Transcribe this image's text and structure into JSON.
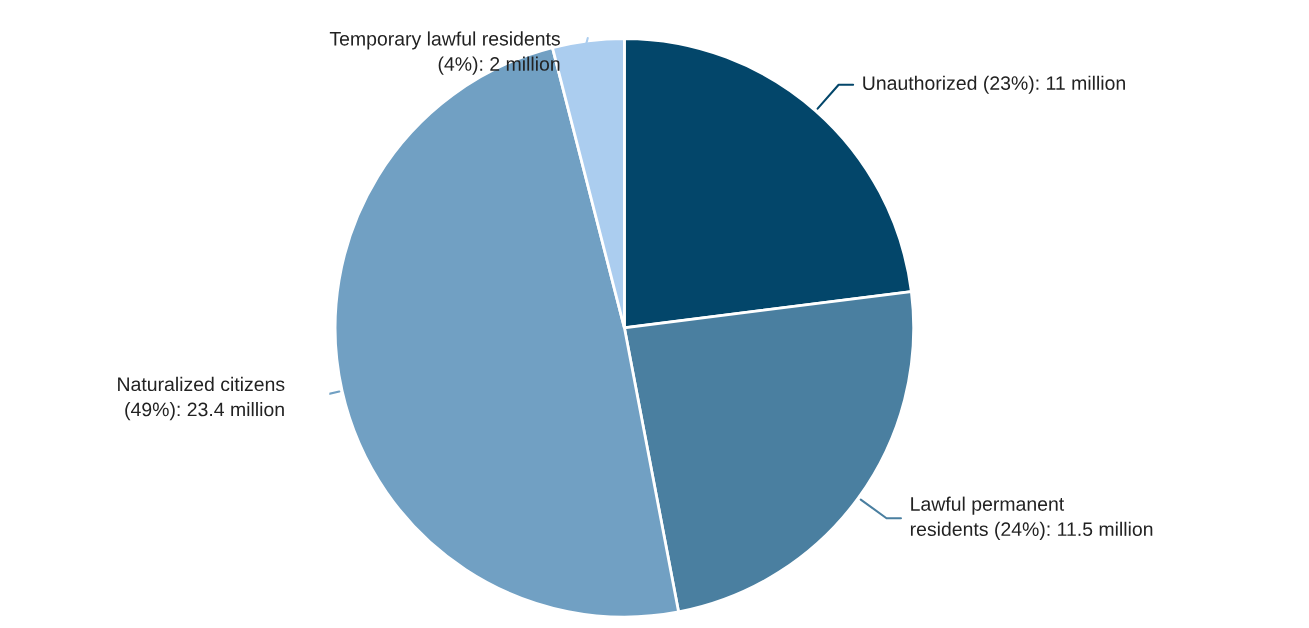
{
  "chart_data": {
    "type": "pie",
    "categories": [
      "Unauthorized (23%): 11 million",
      "Lawful permanent\nresidents (24%): 11.5 million",
      "Naturalized citizens\n(49%): 23.4 million",
      "Temporary lawful residents\n(4%): 2 million"
    ],
    "values": [
      23,
      24,
      49,
      4
    ],
    "colors": [
      "#03466a",
      "#4a7fa0",
      "#71a0c3",
      "#abcdef"
    ]
  }
}
